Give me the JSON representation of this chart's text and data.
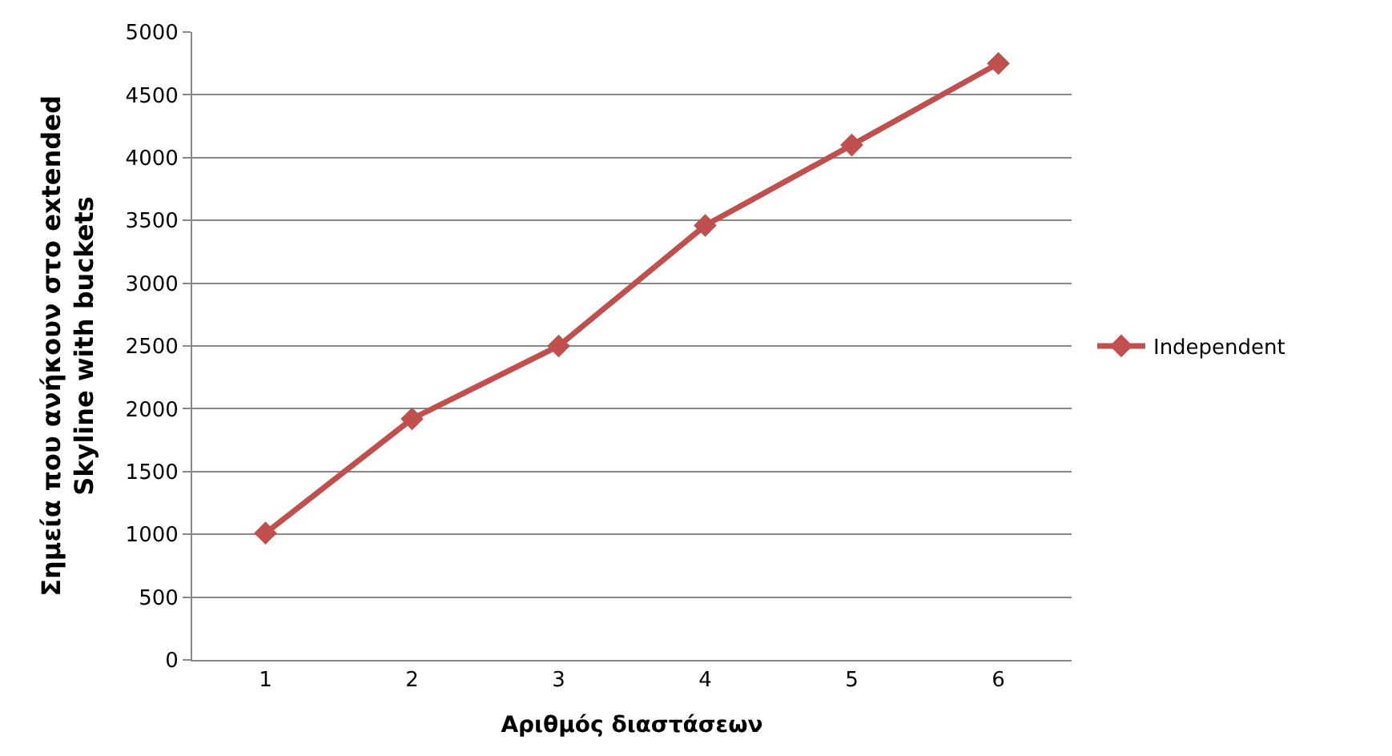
{
  "chart_data": {
    "type": "line",
    "categories": [
      "1",
      "2",
      "3",
      "4",
      "5",
      "6"
    ],
    "series": [
      {
        "name": "Independent",
        "color": "#c0504d",
        "values": [
          1010,
          1920,
          2500,
          3460,
          4100,
          4750
        ]
      }
    ],
    "xlabel": "Αριθμός διαστάσεων",
    "ylabel": "Σημεία που ανήκουν στο extended\nSkyline with buckets",
    "ylim": [
      0,
      5000
    ],
    "yticks": [
      0,
      500,
      1000,
      1500,
      2000,
      2500,
      3000,
      3500,
      4000,
      4500,
      5000
    ],
    "grid": "y",
    "legend": "right",
    "marker": "diamond",
    "line_style": "solid"
  }
}
